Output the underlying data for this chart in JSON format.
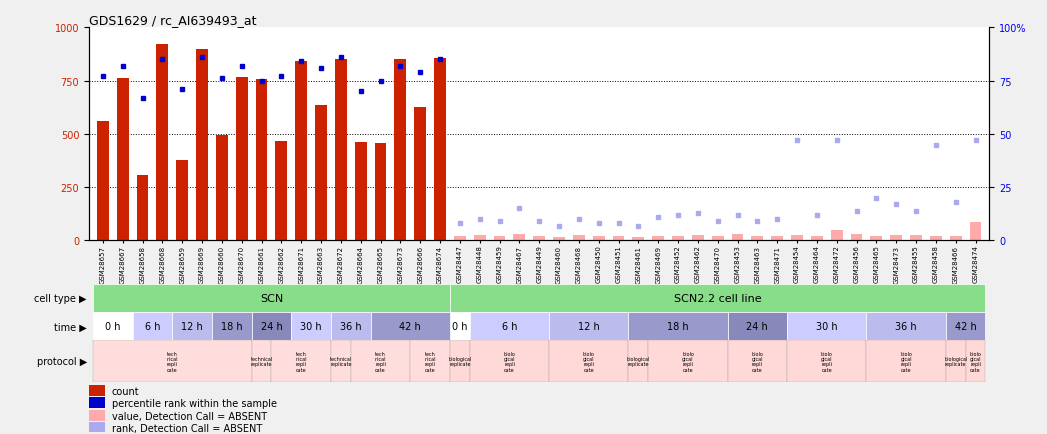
{
  "title": "GDS1629 / rc_AI639493_at",
  "samples": [
    "GSM28657",
    "GSM28667",
    "GSM28658",
    "GSM28668",
    "GSM28659",
    "GSM28669",
    "GSM28660",
    "GSM28670",
    "GSM28661",
    "GSM28662",
    "GSM28671",
    "GSM28663",
    "GSM28672",
    "GSM28664",
    "GSM28665",
    "GSM28673",
    "GSM28666",
    "GSM28674",
    "GSM28447",
    "GSM28448",
    "GSM28459",
    "GSM28467",
    "GSM28449",
    "GSM28460",
    "GSM28468",
    "GSM28450",
    "GSM28451",
    "GSM28461",
    "GSM28469",
    "GSM28452",
    "GSM28462",
    "GSM28470",
    "GSM28453",
    "GSM28463",
    "GSM28471",
    "GSM28454",
    "GSM28464",
    "GSM28472",
    "GSM28456",
    "GSM28465",
    "GSM28473",
    "GSM28455",
    "GSM28458",
    "GSM28466",
    "GSM28474"
  ],
  "counts": [
    560,
    760,
    305,
    920,
    375,
    900,
    495,
    765,
    755,
    465,
    840,
    635,
    850,
    460,
    455,
    850,
    625,
    855,
    20,
    25,
    20,
    30,
    20,
    15,
    25,
    20,
    20,
    15,
    20,
    20,
    25,
    20,
    30,
    20,
    20,
    25,
    20,
    50,
    30,
    20,
    25,
    25,
    20,
    20,
    85
  ],
  "percentile_ranks": [
    77,
    82,
    67,
    85,
    71,
    86,
    76,
    82,
    75,
    77,
    84,
    81,
    86,
    70,
    75,
    82,
    79,
    85,
    8,
    10,
    9,
    15,
    9,
    7,
    10,
    8,
    8,
    7,
    11,
    12,
    13,
    9,
    12,
    9,
    10,
    47,
    12,
    47,
    14,
    20,
    17,
    14,
    45,
    18,
    47
  ],
  "absent_mask": [
    false,
    false,
    false,
    false,
    false,
    false,
    false,
    false,
    false,
    false,
    false,
    false,
    false,
    false,
    false,
    false,
    false,
    false,
    true,
    true,
    true,
    true,
    true,
    true,
    true,
    true,
    true,
    true,
    true,
    true,
    true,
    true,
    true,
    true,
    true,
    true,
    true,
    true,
    true,
    true,
    true,
    true,
    true,
    true,
    true
  ],
  "bar_color_present": "#cc2200",
  "bar_color_absent": "#ffaaaa",
  "dot_color_present": "#0000cc",
  "dot_color_absent": "#aaaaee",
  "ylim_left": [
    0,
    1000
  ],
  "ylim_right": [
    0,
    100
  ],
  "yticks_left": [
    0,
    250,
    500,
    750,
    1000
  ],
  "yticks_right": [
    0,
    25,
    50,
    75,
    100
  ],
  "background_color": "#f0f0f0",
  "plot_bg": "#ffffff",
  "scn_time_ranges": [
    [
      0,
      1
    ],
    [
      2,
      3
    ],
    [
      4,
      5
    ],
    [
      6,
      7
    ],
    [
      8,
      9
    ],
    [
      10,
      11
    ],
    [
      12,
      13
    ],
    [
      14,
      17
    ]
  ],
  "scn2_time_ranges": [
    [
      18,
      18
    ],
    [
      19,
      22
    ],
    [
      23,
      26
    ],
    [
      27,
      31
    ],
    [
      32,
      34
    ],
    [
      35,
      38
    ],
    [
      39,
      42
    ],
    [
      43,
      44
    ]
  ],
  "time_labels": [
    "0 h",
    "6 h",
    "12 h",
    "18 h",
    "24 h",
    "30 h",
    "36 h",
    "42 h"
  ],
  "time_colors": [
    "#ffffff",
    "#ccccff",
    "#bbbbee",
    "#9999cc",
    "#8888bb",
    "#ccccff",
    "#bbbbee",
    "#9999cc"
  ],
  "cell_blocks": [
    {
      "label": "SCN",
      "start": 0,
      "end": 17,
      "color": "#88dd88"
    },
    {
      "label": "SCN2.2 cell line",
      "start": 18,
      "end": 44,
      "color": "#88dd88"
    }
  ],
  "scn_prot_groups": [
    [
      0,
      7,
      "tech\nnical\nrepli\ncate"
    ],
    [
      8,
      8,
      "technical\nreplicate"
    ],
    [
      9,
      11,
      "tech\nnical\nrepli\ncate"
    ],
    [
      12,
      12,
      "technical\nreplicate"
    ],
    [
      13,
      15,
      "tech\nnical\nrepli\ncate"
    ],
    [
      16,
      17,
      "tech\nnical\nrepli\ncate"
    ]
  ],
  "scn2_prot_groups": [
    [
      18,
      18,
      "biological\nreplicate"
    ],
    [
      19,
      22,
      "biolo\ngical\nrepli\ncate"
    ],
    [
      23,
      26,
      "biolo\ngical\nrepli\ncate"
    ],
    [
      27,
      27,
      "biological\nreplicate"
    ],
    [
      28,
      31,
      "biolo\ngical\nrepli\ncate"
    ],
    [
      32,
      34,
      "biolo\ngical\nrepli\ncate"
    ],
    [
      35,
      38,
      "biolo\ngical\nrepli\ncate"
    ],
    [
      39,
      42,
      "biolo\ngical\nrepli\ncate"
    ],
    [
      43,
      43,
      "biological\nreplicate"
    ],
    [
      44,
      44,
      "biolo\ngical\nrepli\ncate"
    ]
  ],
  "prot_color_tech": "#ffdddd",
  "prot_color_bio": "#ffd8d8",
  "legend_items": [
    {
      "label": "count",
      "color": "#cc2200"
    },
    {
      "label": "percentile rank within the sample",
      "color": "#0000cc"
    },
    {
      "label": "value, Detection Call = ABSENT",
      "color": "#ffaaaa"
    },
    {
      "label": "rank, Detection Call = ABSENT",
      "color": "#aaaaee"
    }
  ]
}
